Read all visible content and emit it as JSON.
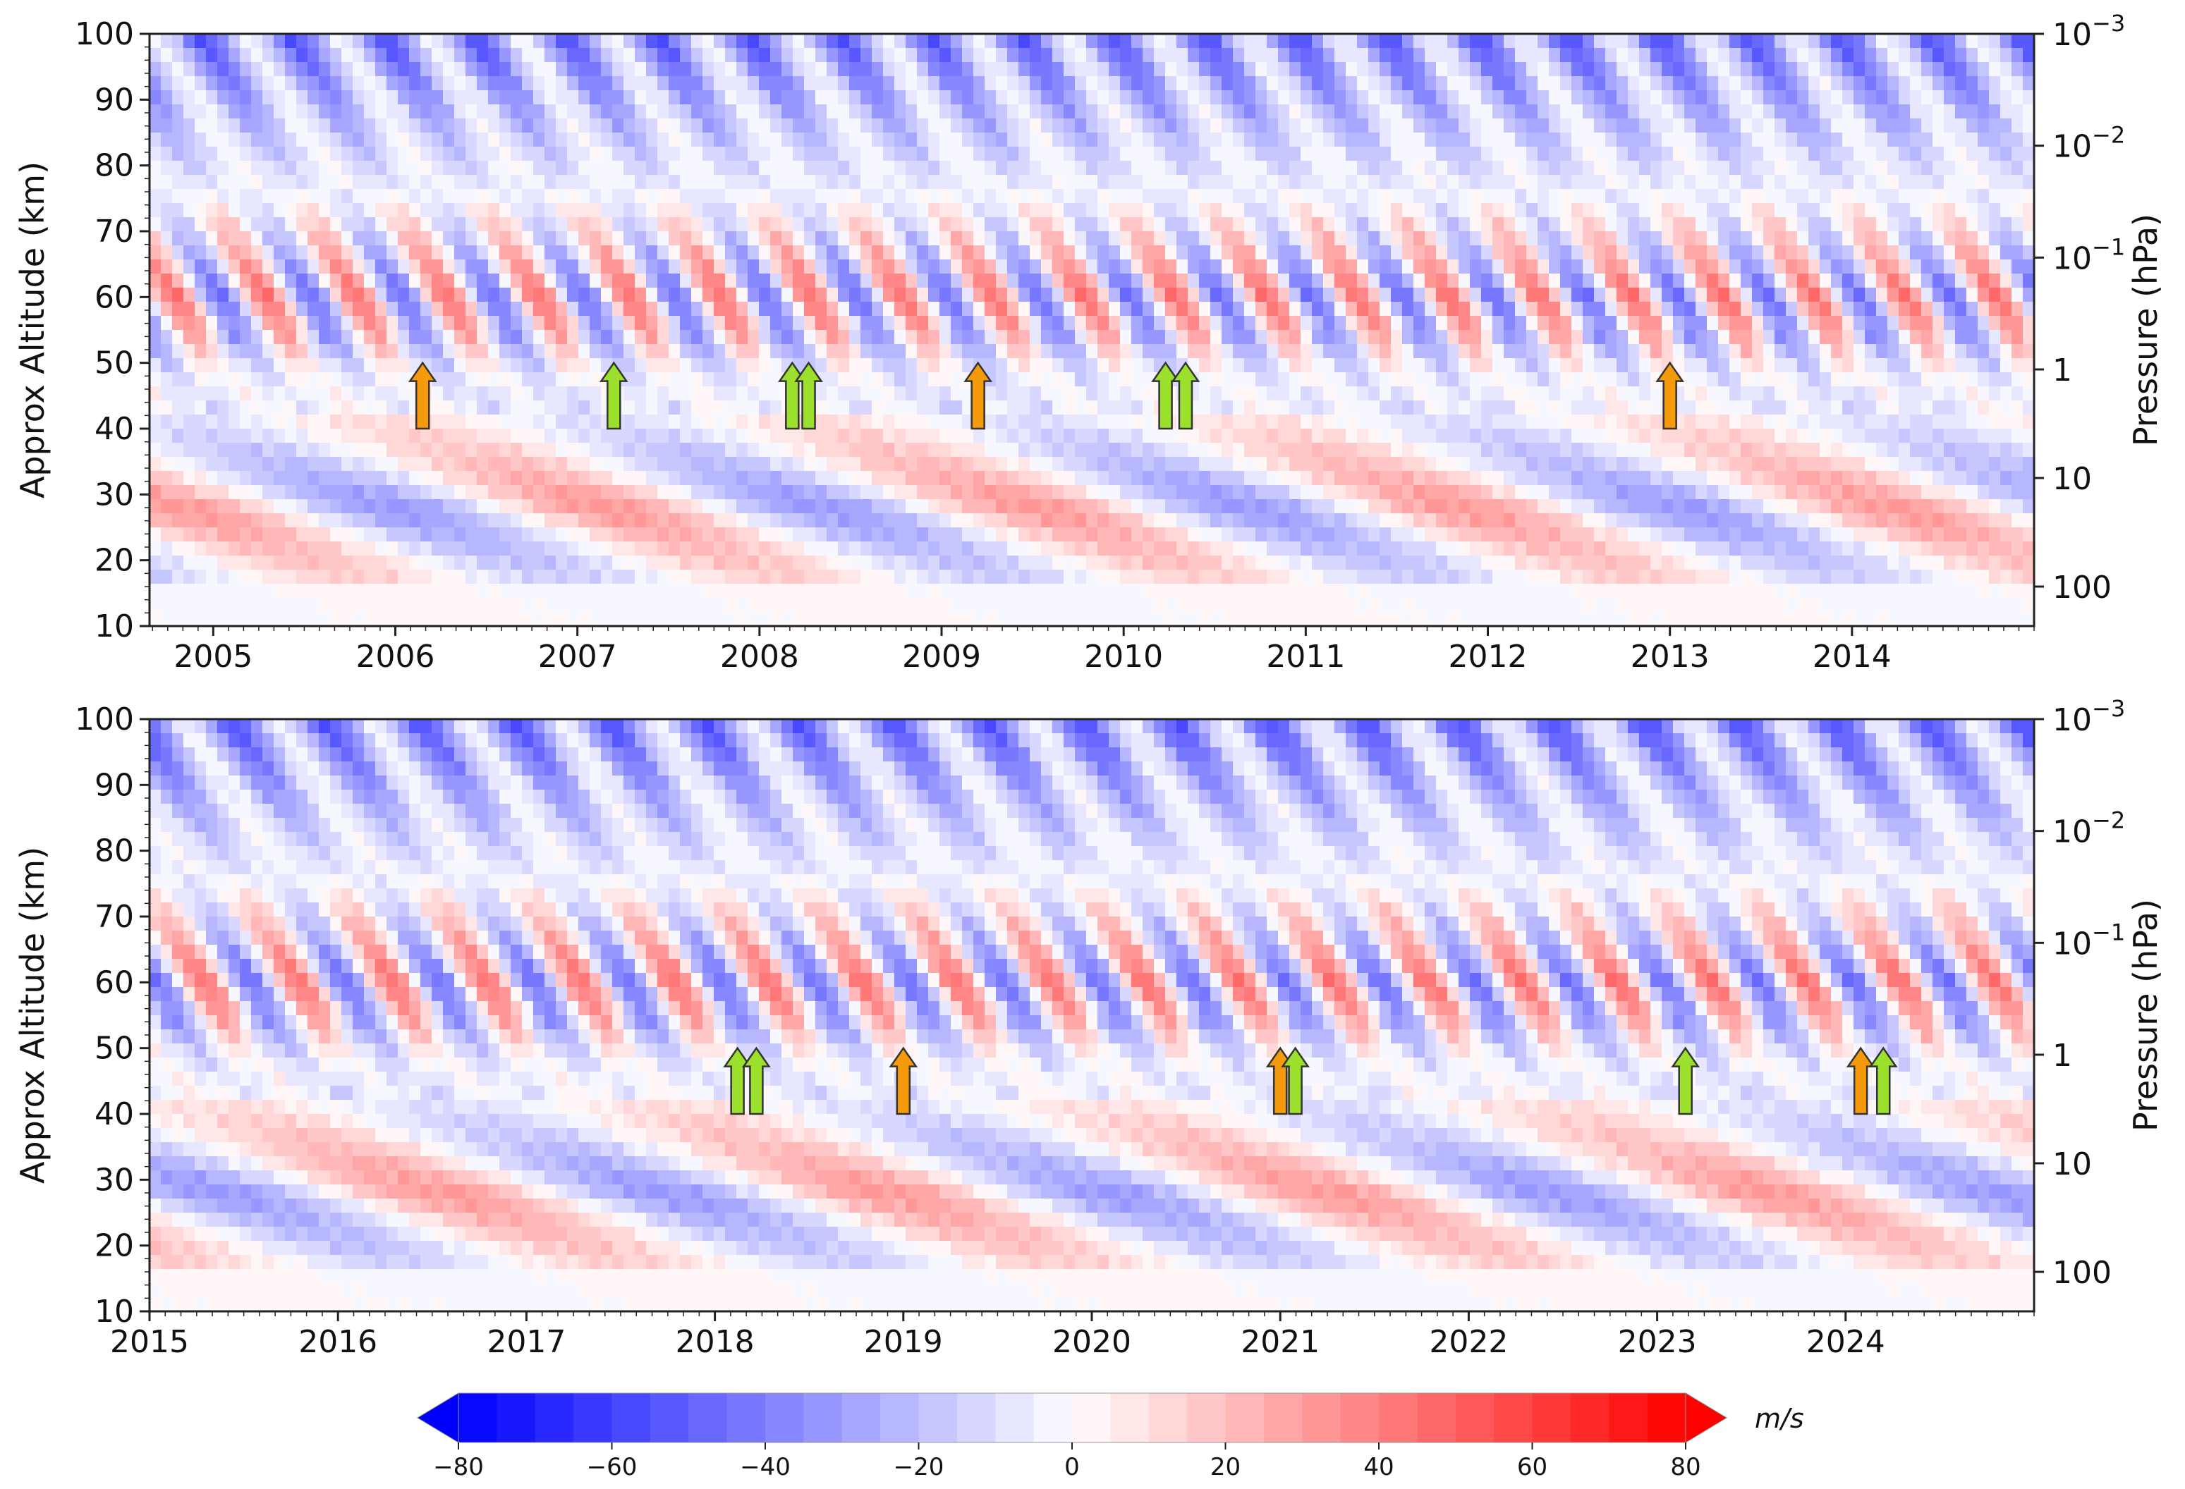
{
  "colors": {
    "negative": "#0000ff",
    "zero": "#ffffff",
    "positive": "#ff0000",
    "arrow_orange": "#f59a0a",
    "arrow_green": "#9be02c",
    "axis": "#222222"
  },
  "chart_data": [
    {
      "type": "heatmap",
      "title": "",
      "xlabel": "",
      "ylabel": "Approx Altitude (km)",
      "y2label": "Pressure (hPa)",
      "xlim": [
        2004.65,
        2015.0
      ],
      "ylim": [
        10,
        100
      ],
      "x_ticks": [
        2005,
        2006,
        2007,
        2008,
        2009,
        2010,
        2011,
        2012,
        2013,
        2014
      ],
      "x_tick_labels": [
        "2005",
        "2006",
        "2007",
        "2008",
        "2009",
        "2010",
        "2011",
        "2012",
        "2013",
        "2014"
      ],
      "y_ticks": [
        10,
        20,
        30,
        40,
        50,
        60,
        70,
        80,
        90,
        100
      ],
      "y_tick_labels": [
        "10",
        "20",
        "30",
        "40",
        "50",
        "60",
        "70",
        "80",
        "90",
        "100"
      ],
      "y2_ticks": [
        {
          "alt": 100,
          "base": "10",
          "exp": "−3"
        },
        {
          "alt": 83,
          "base": "10",
          "exp": "−2"
        },
        {
          "alt": 66,
          "base": "10",
          "exp": "−1"
        },
        {
          "alt": 49,
          "base": "1",
          "exp": ""
        },
        {
          "alt": 32.5,
          "base": "10",
          "exp": ""
        },
        {
          "alt": 16,
          "base": "100",
          "exp": ""
        }
      ],
      "arrows": [
        {
          "x": 2006.15,
          "color": "orange"
        },
        {
          "x": 2007.2,
          "color": "green"
        },
        {
          "x": 2008.18,
          "color": "green"
        },
        {
          "x": 2008.27,
          "color": "green"
        },
        {
          "x": 2009.2,
          "color": "orange"
        },
        {
          "x": 2010.23,
          "color": "green"
        },
        {
          "x": 2010.34,
          "color": "green"
        },
        {
          "x": 2013.0,
          "color": "orange"
        }
      ]
    },
    {
      "type": "heatmap",
      "title": "",
      "xlabel": "",
      "ylabel": "Approx Altitude (km)",
      "y2label": "Pressure (hPa)",
      "xlim": [
        2015.0,
        2025.0
      ],
      "ylim": [
        10,
        100
      ],
      "x_ticks": [
        2015,
        2016,
        2017,
        2018,
        2019,
        2020,
        2021,
        2022,
        2023,
        2024
      ],
      "x_tick_labels": [
        "2015",
        "2016",
        "2017",
        "2018",
        "2019",
        "2020",
        "2021",
        "2022",
        "2023",
        "2024"
      ],
      "y_ticks": [
        10,
        20,
        30,
        40,
        50,
        60,
        70,
        80,
        90,
        100
      ],
      "y_tick_labels": [
        "10",
        "20",
        "30",
        "40",
        "50",
        "60",
        "70",
        "80",
        "90",
        "100"
      ],
      "y2_ticks": [
        {
          "alt": 100,
          "base": "10",
          "exp": "−3"
        },
        {
          "alt": 83,
          "base": "10",
          "exp": "−2"
        },
        {
          "alt": 66,
          "base": "10",
          "exp": "−1"
        },
        {
          "alt": 49,
          "base": "1",
          "exp": ""
        },
        {
          "alt": 32.5,
          "base": "10",
          "exp": ""
        },
        {
          "alt": 16,
          "base": "100",
          "exp": ""
        }
      ],
      "arrows": [
        {
          "x": 2018.12,
          "color": "green"
        },
        {
          "x": 2018.22,
          "color": "green"
        },
        {
          "x": 2019.0,
          "color": "orange"
        },
        {
          "x": 2021.0,
          "color": "orange"
        },
        {
          "x": 2021.08,
          "color": "green"
        },
        {
          "x": 2023.15,
          "color": "green"
        },
        {
          "x": 2024.08,
          "color": "orange"
        },
        {
          "x": 2024.2,
          "color": "green"
        }
      ]
    }
  ],
  "colorbar": {
    "min": -80,
    "max": 80,
    "step": 5,
    "ticks": [
      -80,
      -60,
      -40,
      -20,
      0,
      20,
      40,
      60,
      80
    ],
    "tick_labels": [
      "−80",
      "−60",
      "−40",
      "−20",
      "0",
      "20",
      "40",
      "60",
      "80"
    ],
    "extend": "both",
    "unit": "m/s"
  }
}
